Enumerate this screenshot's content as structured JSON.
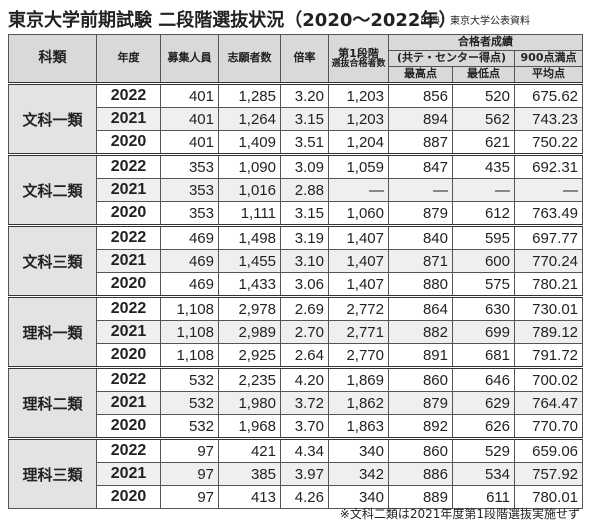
{
  "title": "東京大学前期試験 二段階選抜状況（2020〜2022年）",
  "source": "出典：東京大学公表資料",
  "table": {
    "header": {
      "category": "科類",
      "year": "年度",
      "quota": "募集人員",
      "applicants": "志願者数",
      "ratio": "倍率",
      "first_stage": [
        "第1段階",
        "選抜合格者数"
      ],
      "results": "合格者成績",
      "score_basis": "(共テ・センター得点)",
      "full_score": "900点満点",
      "max": "最高点",
      "min": "最低点",
      "avg": "平均点"
    },
    "groups": [
      {
        "name": "文科一類",
        "rows": [
          [
            "2022",
            "401",
            "1,285",
            "3.20",
            "1,203",
            "856",
            "520",
            "675.62"
          ],
          [
            "2021",
            "401",
            "1,264",
            "3.15",
            "1,203",
            "894",
            "562",
            "743.23"
          ],
          [
            "2020",
            "401",
            "1,409",
            "3.51",
            "1,204",
            "887",
            "621",
            "750.22"
          ]
        ]
      },
      {
        "name": "文科二類",
        "rows": [
          [
            "2022",
            "353",
            "1,090",
            "3.09",
            "1,059",
            "847",
            "435",
            "692.31"
          ],
          [
            "2021",
            "353",
            "1,016",
            "2.88",
            "—",
            "—",
            "—",
            "—"
          ],
          [
            "2020",
            "353",
            "1,111",
            "3.15",
            "1,060",
            "879",
            "612",
            "763.49"
          ]
        ]
      },
      {
        "name": "文科三類",
        "rows": [
          [
            "2022",
            "469",
            "1,498",
            "3.19",
            "1,407",
            "840",
            "595",
            "697.77"
          ],
          [
            "2021",
            "469",
            "1,455",
            "3.10",
            "1,407",
            "871",
            "600",
            "770.24"
          ],
          [
            "2020",
            "469",
            "1,433",
            "3.06",
            "1,407",
            "880",
            "575",
            "780.21"
          ]
        ]
      },
      {
        "name": "理科一類",
        "rows": [
          [
            "2022",
            "1,108",
            "2,978",
            "2.69",
            "2,772",
            "864",
            "630",
            "730.01"
          ],
          [
            "2021",
            "1,108",
            "2,989",
            "2.70",
            "2,771",
            "882",
            "699",
            "789.12"
          ],
          [
            "2020",
            "1,108",
            "2,925",
            "2.64",
            "2,770",
            "891",
            "681",
            "791.72"
          ]
        ]
      },
      {
        "name": "理科二類",
        "rows": [
          [
            "2022",
            "532",
            "2,235",
            "4.20",
            "1,869",
            "860",
            "646",
            "700.02"
          ],
          [
            "2021",
            "532",
            "1,980",
            "3.72",
            "1,862",
            "879",
            "629",
            "764.47"
          ],
          [
            "2020",
            "532",
            "1,968",
            "3.70",
            "1,863",
            "892",
            "626",
            "770.70"
          ]
        ]
      },
      {
        "name": "理科三類",
        "rows": [
          [
            "2022",
            "97",
            "421",
            "4.34",
            "340",
            "860",
            "529",
            "659.06"
          ],
          [
            "2021",
            "97",
            "385",
            "3.97",
            "342",
            "886",
            "534",
            "757.92"
          ],
          [
            "2020",
            "97",
            "413",
            "4.26",
            "340",
            "889",
            "611",
            "780.01"
          ]
        ]
      }
    ]
  },
  "footnote": "※文科二類は2021年度第1段階選抜実施せず"
}
